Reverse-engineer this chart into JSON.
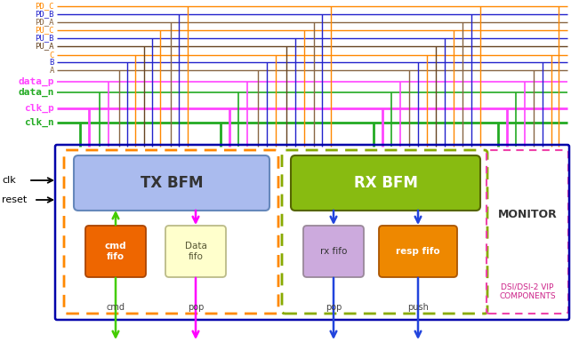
{
  "signal_labels": [
    "PD_C",
    "PD_B",
    "PD_A",
    "PU_C",
    "PU_B",
    "PU_A",
    "C",
    "B",
    "A",
    "data_p",
    "data_n",
    "clk_p",
    "clk_n"
  ],
  "signal_colors": [
    "#ff8800",
    "#2222cc",
    "#886644",
    "#ff8800",
    "#2222cc",
    "#664422",
    "#ff8800",
    "#2222cc",
    "#886644",
    "#ff44ff",
    "#22aa22",
    "#ff44ff",
    "#22aa22"
  ],
  "signal_lw": [
    1.0,
    1.0,
    1.0,
    1.0,
    1.0,
    1.0,
    1.0,
    1.0,
    1.0,
    1.2,
    1.2,
    2.0,
    2.0
  ],
  "signal_bold": [
    false,
    false,
    false,
    false,
    false,
    false,
    false,
    false,
    false,
    true,
    true,
    true,
    true
  ],
  "bg_color": "#ffffff",
  "outer_box_color": "#0000aa",
  "tx_dashed_color": "#ff8800",
  "rx_dashed_color": "#88aa00",
  "monitor_dashed_color": "#ee44aa",
  "tx_bfm_fill": "#aabbee",
  "tx_bfm_edge": "#6688bb",
  "rx_bfm_fill": "#88bb11",
  "rx_bfm_edge": "#556600",
  "cmd_fifo_fill": "#ee6600",
  "cmd_fifo_edge": "#aa4400",
  "data_fifo_fill": "#ffffcc",
  "data_fifo_edge": "#bbbb88",
  "rx_fifo_fill": "#ccaadd",
  "rx_fifo_edge": "#998899",
  "resp_fifo_fill": "#ee8800",
  "resp_fifo_edge": "#aa5500",
  "monitor_text_color": "#333333",
  "components_text_color": "#cc2288",
  "arrow_green": "#44cc00",
  "arrow_magenta": "#ff00ff",
  "arrow_blue": "#2244dd",
  "clk_arrow_color": "#000000",
  "label_fontsize": 6.5,
  "bold_fontsize": 8.0
}
